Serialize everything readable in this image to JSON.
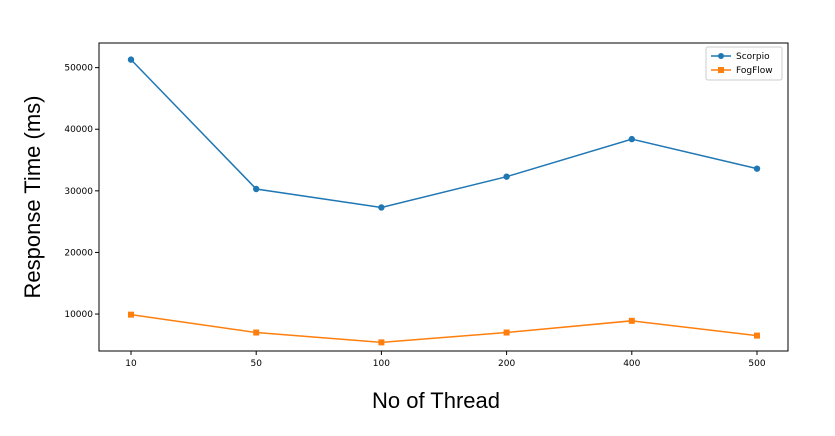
{
  "chart_data": {
    "type": "line",
    "title": "",
    "xlabel": "No of Thread",
    "ylabel": "Response Time (ms)",
    "categories": [
      "10",
      "50",
      "100",
      "200",
      "400",
      "500"
    ],
    "yticks": [
      10000,
      20000,
      30000,
      40000,
      50000
    ],
    "ylim": [
      4000,
      54000
    ],
    "grid": false,
    "legend_position": "top-right",
    "series": [
      {
        "name": "Scorpio",
        "color": "#1f77b4",
        "marker": "circle",
        "values": [
          51300,
          30300,
          27300,
          32300,
          38400,
          33600
        ]
      },
      {
        "name": "FogFlow",
        "color": "#ff7f0e",
        "marker": "square",
        "values": [
          9900,
          7000,
          5400,
          7000,
          8900,
          6500
        ]
      }
    ]
  }
}
